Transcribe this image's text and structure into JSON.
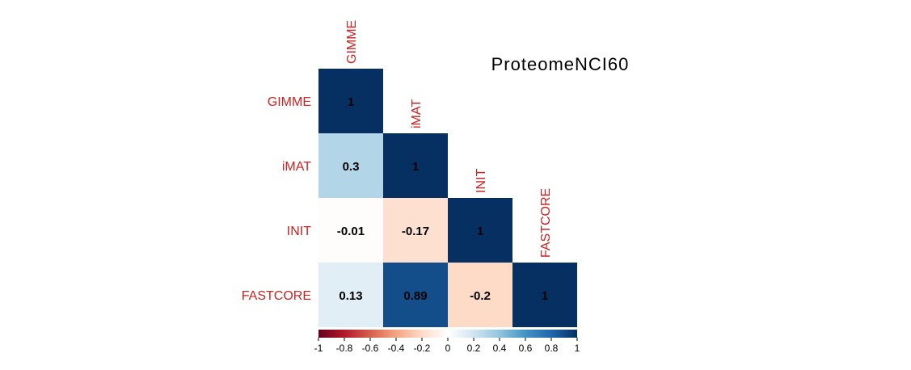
{
  "chart_data": {
    "type": "heatmap",
    "title": "ProteomeNCI60",
    "variables": [
      "GIMME",
      "iMAT",
      "INIT",
      "FASTCORE"
    ],
    "layout": "lower-triangle",
    "label_color": "#cc2222",
    "matrix": [
      [
        1,
        null,
        null,
        null
      ],
      [
        0.3,
        1,
        null,
        null
      ],
      [
        -0.01,
        -0.17,
        1,
        null
      ],
      [
        0.13,
        0.89,
        -0.2,
        1
      ]
    ],
    "cell_labels": [
      [
        "1",
        "",
        "",
        ""
      ],
      [
        "0.3",
        "1",
        "",
        ""
      ],
      [
        "-0.01",
        "-0.17",
        "1",
        ""
      ],
      [
        "0.13",
        "0.89",
        "-0.2",
        "1"
      ]
    ],
    "colorbar": {
      "range": [
        -1,
        1
      ],
      "ticks": [
        "-1",
        "-0.8",
        "-0.6",
        "-0.4",
        "-0.2",
        "0",
        "0.2",
        "0.4",
        "0.6",
        "0.8",
        "1"
      ],
      "placement": "bottom",
      "palette": [
        "#67001f",
        "#b2182b",
        "#d6604d",
        "#f4a582",
        "#fddbc7",
        "#ffffff",
        "#d1e5f0",
        "#92c5de",
        "#4393c3",
        "#2166ac",
        "#053061"
      ]
    }
  }
}
